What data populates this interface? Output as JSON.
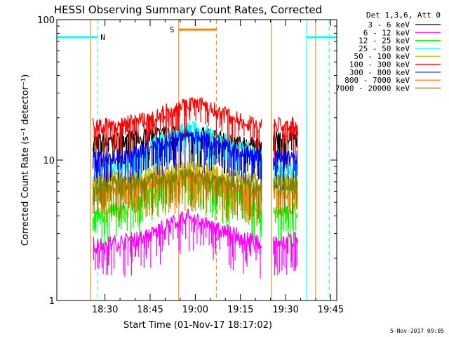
{
  "chart_data": {
    "type": "line",
    "title": "HESSI Observing Summary Count Rates, Corrected",
    "xlabel": "Start Time (01-Nov-17 18:17:02)",
    "ylabel": "Corrected Count Rate (s⁻¹ detector⁻¹)",
    "ylog": true,
    "ylim": [
      1,
      100
    ],
    "xlim_minutes": [
      0,
      93
    ],
    "x_ticks": [
      {
        "m": 16,
        "label": "18:30"
      },
      {
        "m": 31,
        "label": "18:45"
      },
      {
        "m": 46,
        "label": "19:00"
      },
      {
        "m": 61,
        "label": "19:15"
      },
      {
        "m": 76,
        "label": "19:30"
      },
      {
        "m": 91,
        "label": "19:45"
      }
    ],
    "y_ticks": [
      {
        "v": 1,
        "label": "1"
      },
      {
        "v": 10,
        "label": "10"
      },
      {
        "v": 100,
        "label": "100"
      }
    ],
    "legend_title": "Det 1,3,6, Att 0",
    "legend_position": "top-right, outside plot",
    "series": [
      {
        "name": "3 - 6 keV",
        "color": "#000000",
        "segments": [
          {
            "x": [
              12,
              16,
              20,
              24,
              28,
              32,
              36,
              40,
              44,
              48,
              52,
              56,
              60,
              64,
              68
            ],
            "y": [
              13.5,
              14,
              14,
              14.5,
              14.5,
              15,
              15.5,
              15.5,
              16,
              15.5,
              15,
              14,
              13,
              13,
              12.5
            ]
          },
          {
            "x": [
              72,
              74,
              76,
              78,
              80
            ],
            "y": [
              14,
              14.5,
              14,
              14,
              14.5
            ]
          }
        ]
      },
      {
        "name": "6 - 12 keV",
        "color": "#ff00ff",
        "segments": [
          {
            "x": [
              12,
              16,
              20,
              24,
              28,
              32,
              36,
              40,
              44,
              48,
              52,
              56,
              60,
              64,
              68
            ],
            "y": [
              2.5,
              2.5,
              2.6,
              2.7,
              2.8,
              3.0,
              3.4,
              3.7,
              4.0,
              3.6,
              3.3,
              3.1,
              2.9,
              2.7,
              2.5
            ]
          },
          {
            "x": [
              72,
              74,
              76,
              78,
              80
            ],
            "y": [
              2.7,
              2.7,
              2.6,
              2.7,
              2.7
            ]
          }
        ]
      },
      {
        "name": "12 - 25 keV",
        "color": "#00ff00",
        "segments": [
          {
            "x": [
              12,
              16,
              20,
              24,
              28,
              32,
              36,
              40,
              44,
              48,
              52,
              56,
              60,
              64,
              68
            ],
            "y": [
              4.0,
              4.2,
              4.4,
              4.6,
              5.0,
              5.8,
              6.8,
              7.5,
              7.8,
              7.2,
              6.5,
              6.0,
              5.5,
              5.0,
              4.5
            ]
          },
          {
            "x": [
              72,
              74,
              76,
              78,
              80
            ],
            "y": [
              4.4,
              4.5,
              4.4,
              4.4,
              4.5
            ]
          }
        ]
      },
      {
        "name": "25 - 50 keV",
        "color": "#00ffff",
        "segments": [
          {
            "x": [
              12,
              16,
              20,
              24,
              28,
              32,
              36,
              40,
              44,
              48,
              52,
              56,
              60,
              64,
              68
            ],
            "y": [
              8.0,
              8.5,
              9.0,
              9.5,
              11,
              13,
              15,
              16,
              17,
              16,
              15,
              14,
              13,
              12,
              11
            ]
          },
          {
            "x": [
              72,
              74,
              76,
              78,
              80
            ],
            "y": [
              8.5,
              8.8,
              8.6,
              8.6,
              8.8
            ]
          }
        ]
      },
      {
        "name": "50 - 100 keV",
        "color": "#c8b400",
        "segments": [
          {
            "x": [
              12,
              16,
              20,
              24,
              28,
              32,
              36,
              40,
              44,
              48,
              52,
              56,
              60,
              64,
              68
            ],
            "y": [
              7.2,
              7.3,
              7.4,
              7.6,
              7.8,
              8.0,
              8.3,
              8.6,
              8.8,
              8.5,
              8.2,
              7.8,
              7.5,
              7.2,
              7.0
            ]
          },
          {
            "x": [
              72,
              74,
              76,
              78,
              80
            ],
            "y": [
              7.3,
              7.4,
              7.3,
              7.3,
              7.4
            ]
          }
        ]
      },
      {
        "name": "100 - 300 keV",
        "color": "#ff0000",
        "segments": [
          {
            "x": [
              12,
              16,
              20,
              24,
              28,
              32,
              36,
              40,
              44,
              48,
              52,
              56,
              60,
              64,
              68
            ],
            "y": [
              17.5,
              17.5,
              18,
              18.5,
              19,
              20,
              22,
              24,
              25.5,
              25,
              23,
              21,
              19.5,
              18.5,
              17.5
            ]
          },
          {
            "x": [
              72,
              74,
              76,
              78,
              80
            ],
            "y": [
              17.5,
              18,
              17.5,
              17.5,
              18
            ]
          }
        ]
      },
      {
        "name": "300 - 800 keV",
        "color": "#0000ff",
        "segments": [
          {
            "x": [
              12,
              16,
              20,
              24,
              28,
              32,
              36,
              40,
              44,
              48,
              52,
              56,
              60,
              64,
              68
            ],
            "y": [
              10.0,
              10.2,
              10.5,
              11,
              11.5,
              12.5,
              13.5,
              14.5,
              15,
              14.5,
              13.5,
              12.5,
              11.5,
              11,
              10.5
            ]
          },
          {
            "x": [
              72,
              74,
              76,
              78,
              80
            ],
            "y": [
              10.2,
              10.4,
              10.3,
              10.2,
              10.4
            ]
          }
        ]
      },
      {
        "name": "800 - 7000 keV",
        "color": "#ff8000",
        "segments": [
          {
            "x": [
              12,
              16,
              20,
              24,
              28,
              32,
              36,
              40,
              44,
              48,
              52,
              56,
              60,
              64,
              68
            ],
            "y": [
              5.8,
              6.0,
              6.2,
              6.4,
              6.6,
              6.9,
              7.2,
              7.5,
              7.7,
              7.4,
              7.0,
              6.6,
              6.3,
              6.0,
              5.8
            ]
          },
          {
            "x": [
              72,
              74,
              76,
              78,
              80
            ],
            "y": [
              6.0,
              6.1,
              6.0,
              6.0,
              6.1
            ]
          }
        ]
      },
      {
        "name": "7000 - 20000 keV",
        "color": "#808000",
        "segments": [
          {
            "x": [
              12,
              16,
              20,
              24,
              28,
              32,
              36,
              40,
              44,
              48,
              52,
              56,
              60,
              64,
              68
            ],
            "y": [
              6.6,
              6.7,
              6.8,
              6.9,
              7.1,
              7.3,
              7.5,
              7.7,
              7.9,
              7.6,
              7.3,
              7.0,
              6.8,
              6.7,
              6.5
            ]
          },
          {
            "x": [
              72,
              74,
              76,
              78,
              80
            ],
            "y": [
              6.8,
              6.9,
              6.8,
              6.8,
              6.9
            ]
          }
        ]
      }
    ],
    "annotations": [
      {
        "label": "N",
        "color": "#00ffff",
        "bar_x": [
          0,
          13.5
        ],
        "bar_y": 75,
        "text_x": 14.5
      },
      {
        "label": "S",
        "color": "#ff8000",
        "bar_x": [
          40.5,
          53
        ],
        "bar_y": 85,
        "text_x": 37.5
      },
      {
        "label": "",
        "color": "#00ffff",
        "bar_x": [
          83,
          93
        ],
        "bar_y": 75
      }
    ],
    "vlines": [
      {
        "x": 0,
        "color": "#00ffff",
        "style": "solid"
      },
      {
        "x": 13.5,
        "color": "#00ffff",
        "style": "dashed"
      },
      {
        "x": 11.3,
        "color": "#ff8000",
        "style": "solid"
      },
      {
        "x": 40.5,
        "color": "#ff8000",
        "style": "solid"
      },
      {
        "x": 53,
        "color": "#ff8000",
        "style": "dashed"
      },
      {
        "x": 71.2,
        "color": "#ff8000",
        "style": "solid"
      },
      {
        "x": 83,
        "color": "#00ffff",
        "style": "solid"
      },
      {
        "x": 86,
        "color": "#ff8000",
        "style": "solid"
      },
      {
        "x": 90.5,
        "color": "#00ffff",
        "style": "dashed"
      }
    ]
  },
  "footer": {
    "date": "5-Nov-2017 09:05"
  }
}
